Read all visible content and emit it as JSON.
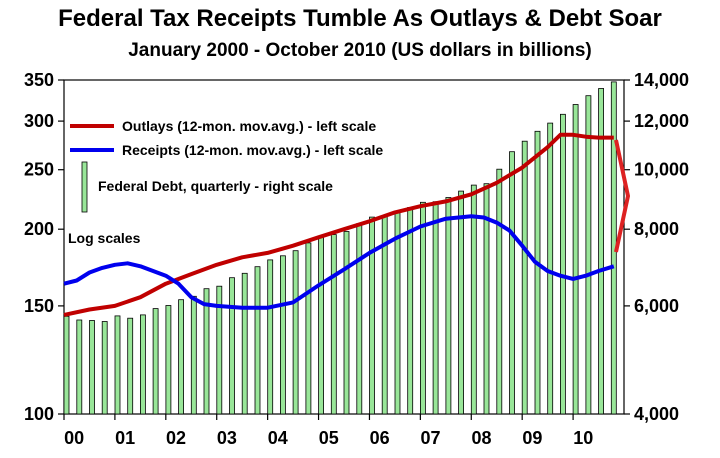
{
  "chart_data": {
    "type": "line",
    "title": "Federal Tax Receipts Tumble As Outlays & Debt Soar",
    "subtitle": "January 2000 - October 2010 (US dollars in billions)",
    "annotation": "Log scales",
    "x_tick_labels": [
      "00",
      "01",
      "02",
      "03",
      "04",
      "05",
      "06",
      "07",
      "08",
      "09",
      "10"
    ],
    "left_axis": {
      "scale": "log",
      "range": [
        100,
        350
      ],
      "ticks": [
        100,
        150,
        200,
        250,
        300,
        350
      ],
      "tick_labels": [
        "100",
        "150",
        "200",
        "250",
        "300",
        "350"
      ]
    },
    "right_axis": {
      "scale": "log",
      "range": [
        4000,
        14000
      ],
      "ticks": [
        4000,
        6000,
        8000,
        10000,
        12000,
        14000
      ],
      "tick_labels": [
        "4,000",
        "6,000",
        "8,000",
        "10,000",
        "12,000",
        "14,000"
      ]
    },
    "x_range": [
      2000.0,
      2011.0
    ],
    "legend_placement": "top-left",
    "grid": false,
    "series": [
      {
        "name": "Outlays (12-mon. mov.avg.) - left scale",
        "kind": "line",
        "axis": "left",
        "color": "#c00000",
        "points": [
          [
            2000.0,
            145
          ],
          [
            2000.5,
            148
          ],
          [
            2001.0,
            150
          ],
          [
            2001.5,
            155
          ],
          [
            2002.0,
            163
          ],
          [
            2002.5,
            169
          ],
          [
            2003.0,
            175
          ],
          [
            2003.5,
            180
          ],
          [
            2004.0,
            183
          ],
          [
            2004.5,
            188
          ],
          [
            2005.0,
            194
          ],
          [
            2005.5,
            200
          ],
          [
            2006.0,
            206
          ],
          [
            2006.5,
            213
          ],
          [
            2007.0,
            218
          ],
          [
            2007.5,
            222
          ],
          [
            2008.0,
            228
          ],
          [
            2008.5,
            238
          ],
          [
            2009.0,
            252
          ],
          [
            2009.5,
            272
          ],
          [
            2009.75,
            285
          ],
          [
            2010.0,
            285
          ],
          [
            2010.25,
            283
          ],
          [
            2010.5,
            282
          ],
          [
            2010.8,
            282
          ]
        ]
      },
      {
        "name": "Receipts (12-mon. mov.avg.) - left scale",
        "kind": "line",
        "axis": "left",
        "color": "#0000ee",
        "points": [
          [
            2000.0,
            163
          ],
          [
            2000.25,
            165
          ],
          [
            2000.5,
            170
          ],
          [
            2000.75,
            173
          ],
          [
            2001.0,
            175
          ],
          [
            2001.25,
            176
          ],
          [
            2001.5,
            174
          ],
          [
            2001.75,
            171
          ],
          [
            2002.0,
            168
          ],
          [
            2002.25,
            163
          ],
          [
            2002.5,
            155
          ],
          [
            2002.75,
            151
          ],
          [
            2003.0,
            150
          ],
          [
            2003.5,
            149
          ],
          [
            2004.0,
            149
          ],
          [
            2004.5,
            152
          ],
          [
            2005.0,
            162
          ],
          [
            2005.5,
            172
          ],
          [
            2006.0,
            183
          ],
          [
            2006.5,
            193
          ],
          [
            2007.0,
            202
          ],
          [
            2007.5,
            208
          ],
          [
            2008.0,
            210
          ],
          [
            2008.25,
            209
          ],
          [
            2008.5,
            205
          ],
          [
            2008.75,
            199
          ],
          [
            2009.0,
            188
          ],
          [
            2009.25,
            177
          ],
          [
            2009.5,
            171
          ],
          [
            2009.75,
            168
          ],
          [
            2010.0,
            166
          ],
          [
            2010.25,
            168
          ],
          [
            2010.5,
            171
          ],
          [
            2010.8,
            174
          ]
        ]
      },
      {
        "name": "Federal Debt, quarterly - right scale",
        "kind": "bar",
        "axis": "right",
        "color": "#99e699",
        "points": [
          [
            2000.0,
            5770
          ],
          [
            2000.25,
            5690
          ],
          [
            2000.5,
            5680
          ],
          [
            2000.75,
            5660
          ],
          [
            2001.0,
            5780
          ],
          [
            2001.25,
            5730
          ],
          [
            2001.5,
            5800
          ],
          [
            2001.75,
            5940
          ],
          [
            2002.0,
            6010
          ],
          [
            2002.25,
            6140
          ],
          [
            2002.5,
            6220
          ],
          [
            2002.75,
            6400
          ],
          [
            2003.0,
            6460
          ],
          [
            2003.25,
            6670
          ],
          [
            2003.5,
            6780
          ],
          [
            2003.75,
            6950
          ],
          [
            2004.0,
            7130
          ],
          [
            2004.25,
            7240
          ],
          [
            2004.5,
            7380
          ],
          [
            2004.75,
            7600
          ],
          [
            2005.0,
            7780
          ],
          [
            2005.25,
            7840
          ],
          [
            2005.5,
            7930
          ],
          [
            2005.75,
            8170
          ],
          [
            2006.0,
            8370
          ],
          [
            2006.25,
            8420
          ],
          [
            2006.5,
            8510
          ],
          [
            2006.75,
            8680
          ],
          [
            2007.0,
            8850
          ],
          [
            2007.25,
            8870
          ],
          [
            2007.5,
            9010
          ],
          [
            2007.75,
            9230
          ],
          [
            2008.0,
            9440
          ],
          [
            2008.25,
            9490
          ],
          [
            2008.5,
            10020
          ],
          [
            2008.75,
            10700
          ],
          [
            2009.0,
            11130
          ],
          [
            2009.25,
            11550
          ],
          [
            2009.5,
            11910
          ],
          [
            2009.75,
            12310
          ],
          [
            2010.0,
            12770
          ],
          [
            2010.25,
            13200
          ],
          [
            2010.5,
            13560
          ],
          [
            2010.75,
            13900
          ]
        ]
      }
    ],
    "debt_arrow_color": "#dd2222"
  }
}
